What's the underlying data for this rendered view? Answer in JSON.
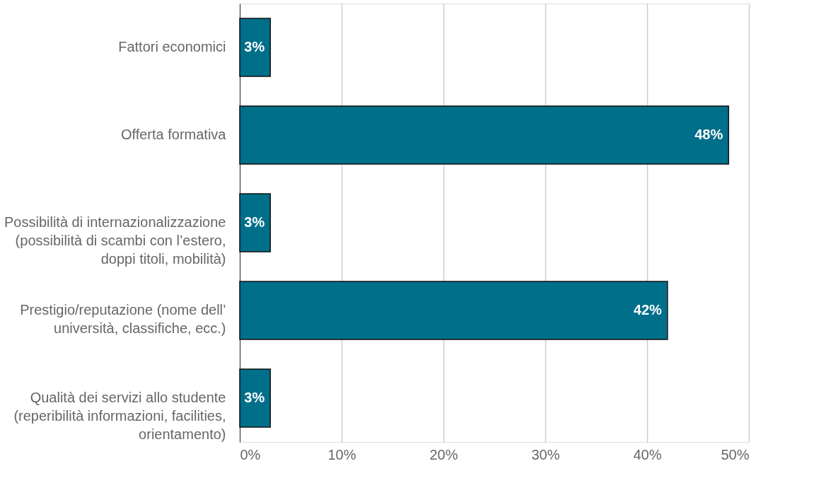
{
  "chart_data": {
    "type": "bar",
    "orientation": "horizontal",
    "categories": [
      "Fattori economici",
      "Offerta formativa",
      "Possibilità di internazionalizzazione (possibilità di scambi con l’estero, doppi titoli, mobilità)",
      "Prestigio/reputazione (nome dell’ università, classifiche, ecc.)",
      "Qualità dei servizi allo studente (reperibilità informazioni, facilities, orientamento)"
    ],
    "values": [
      3,
      48,
      3,
      42,
      3
    ],
    "value_labels": [
      "3%",
      "48%",
      "3%",
      "42%",
      "3%"
    ],
    "color": "#006f8a",
    "xlim": [
      0,
      50
    ],
    "xticks": [
      {
        "value": 0,
        "label": "0%"
      },
      {
        "value": 10,
        "label": "10%"
      },
      {
        "value": 20,
        "label": "20%"
      },
      {
        "value": 30,
        "label": "30%"
      },
      {
        "value": 40,
        "label": "40%"
      },
      {
        "value": 50,
        "label": "50%"
      }
    ],
    "grid": "x"
  }
}
